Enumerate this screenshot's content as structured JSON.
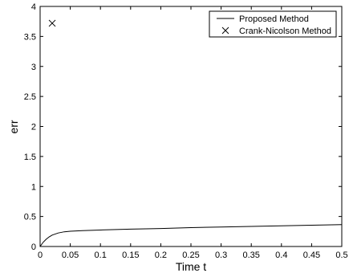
{
  "chart_data": {
    "type": "line",
    "title": "",
    "xlabel": "Time t",
    "ylabel": "err",
    "xlim": [
      0,
      0.5
    ],
    "ylim": [
      0,
      4
    ],
    "xticks": [
      "0",
      "0.05",
      "0.1",
      "0.15",
      "0.2",
      "0.25",
      "0.3",
      "0.35",
      "0.4",
      "0.45",
      "0.5"
    ],
    "yticks": [
      "0",
      "0.5",
      "1",
      "1.5",
      "2",
      "2.5",
      "3",
      "3.5",
      "4"
    ],
    "grid": false,
    "legend_position": "top-right",
    "series": [
      {
        "name": "Proposed Method",
        "style": "line",
        "color": "#000000",
        "x": [
          0,
          0.005,
          0.01,
          0.015,
          0.02,
          0.03,
          0.04,
          0.05,
          0.07,
          0.1,
          0.15,
          0.2,
          0.25,
          0.3,
          0.35,
          0.4,
          0.45,
          0.5
        ],
        "y": [
          0.0,
          0.07,
          0.12,
          0.16,
          0.19,
          0.225,
          0.245,
          0.255,
          0.265,
          0.275,
          0.29,
          0.3,
          0.315,
          0.325,
          0.335,
          0.345,
          0.355,
          0.365
        ]
      },
      {
        "name": "Crank-Nicolson Method",
        "style": "marker",
        "marker": "x",
        "color": "#000000",
        "x": [
          0.02
        ],
        "y": [
          3.72
        ]
      }
    ]
  }
}
